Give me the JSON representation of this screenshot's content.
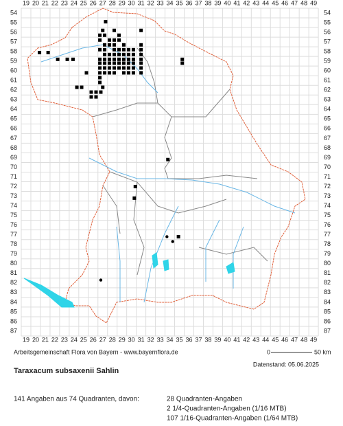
{
  "map": {
    "x_labels": [
      19,
      20,
      21,
      22,
      23,
      24,
      25,
      26,
      27,
      28,
      29,
      30,
      31,
      32,
      33,
      34,
      35,
      36,
      37,
      38,
      39,
      40,
      41,
      42,
      43,
      44,
      45,
      46,
      47,
      48,
      49
    ],
    "y_labels": [
      54,
      55,
      56,
      57,
      58,
      59,
      60,
      61,
      62,
      63,
      64,
      65,
      66,
      67,
      68,
      69,
      70,
      71,
      72,
      73,
      74,
      75,
      76,
      77,
      78,
      79,
      80,
      81,
      82,
      83,
      84,
      85,
      86,
      87
    ],
    "squares": [
      [
        27.3,
        54.9
      ],
      [
        20.4,
        58.1
      ],
      [
        21.3,
        58.1
      ],
      [
        22.3,
        58.8
      ],
      [
        23.3,
        58.8
      ],
      [
        23.9,
        58.8
      ],
      [
        27.0,
        55.8
      ],
      [
        28.2,
        55.8
      ],
      [
        31.0,
        55.8
      ],
      [
        26.7,
        56.3
      ],
      [
        27.2,
        56.3
      ],
      [
        28.7,
        56.3
      ],
      [
        26.7,
        56.8
      ],
      [
        27.7,
        56.8
      ],
      [
        28.2,
        56.8
      ],
      [
        28.7,
        56.8
      ],
      [
        27.2,
        57.3
      ],
      [
        27.7,
        57.3
      ],
      [
        28.2,
        57.3
      ],
      [
        29.2,
        57.3
      ],
      [
        31.0,
        57.3
      ],
      [
        26.7,
        57.8
      ],
      [
        27.2,
        57.8
      ],
      [
        28.2,
        57.8
      ],
      [
        28.7,
        57.8
      ],
      [
        29.2,
        57.8
      ],
      [
        29.7,
        57.8
      ],
      [
        30.2,
        57.8
      ],
      [
        31.0,
        57.8
      ],
      [
        27.2,
        58.3
      ],
      [
        27.7,
        58.3
      ],
      [
        28.2,
        58.3
      ],
      [
        28.7,
        58.3
      ],
      [
        29.2,
        58.3
      ],
      [
        29.7,
        58.3
      ],
      [
        30.2,
        58.3
      ],
      [
        31.0,
        58.3
      ],
      [
        26.7,
        58.8
      ],
      [
        27.2,
        58.8
      ],
      [
        27.7,
        58.8
      ],
      [
        28.2,
        58.8
      ],
      [
        28.7,
        58.8
      ],
      [
        29.2,
        58.8
      ],
      [
        29.7,
        58.8
      ],
      [
        30.2,
        58.8
      ],
      [
        31.0,
        58.8
      ],
      [
        35.3,
        58.8
      ],
      [
        26.7,
        59.2
      ],
      [
        27.2,
        59.2
      ],
      [
        27.7,
        59.2
      ],
      [
        28.2,
        59.2
      ],
      [
        28.7,
        59.2
      ],
      [
        29.2,
        59.2
      ],
      [
        29.7,
        59.2
      ],
      [
        30.2,
        59.2
      ],
      [
        31.0,
        59.2
      ],
      [
        35.3,
        59.2
      ],
      [
        26.7,
        59.7
      ],
      [
        27.2,
        59.7
      ],
      [
        27.7,
        59.7
      ],
      [
        28.2,
        59.7
      ],
      [
        28.7,
        59.7
      ],
      [
        29.2,
        59.7
      ],
      [
        29.7,
        59.7
      ],
      [
        30.2,
        59.7
      ],
      [
        31.0,
        59.7
      ],
      [
        25.3,
        60.2
      ],
      [
        26.7,
        60.2
      ],
      [
        27.2,
        60.2
      ],
      [
        27.7,
        60.2
      ],
      [
        28.2,
        60.2
      ],
      [
        29.2,
        60.2
      ],
      [
        29.7,
        60.2
      ],
      [
        30.2,
        60.2
      ],
      [
        31.0,
        60.2
      ],
      [
        26.7,
        60.7
      ],
      [
        26.7,
        61.2
      ],
      [
        24.3,
        61.7
      ],
      [
        24.8,
        61.7
      ],
      [
        27.0,
        61.7
      ],
      [
        25.8,
        62.2
      ],
      [
        26.3,
        62.2
      ],
      [
        26.8,
        62.2
      ],
      [
        25.8,
        62.7
      ],
      [
        26.3,
        62.7
      ],
      [
        33.8,
        69.2
      ],
      [
        30.4,
        72.0
      ],
      [
        30.3,
        73.2
      ],
      [
        34.9,
        77.2
      ]
    ],
    "dots": [
      [
        33.7,
        77.2
      ],
      [
        34.3,
        77.7
      ],
      [
        26.8,
        81.7
      ]
    ],
    "credit": "Arbeitsgemeinschaft Flora von Bayern - www.bayernflora.de",
    "scale_start": "0",
    "scale_end": "50 km",
    "date": "Datenstand: 05.06.2025",
    "title": "Taraxacum subsaxenii Sahlin",
    "summary": "141 Angaben aus 74 Quadranten, davon:",
    "counts": [
      "28 Quadranten-Angaben",
      "2 1/4-Quadranten-Angaben (1/16 MTB)",
      "107 1/16-Quadranten-Angaben (1/64 MTB)"
    ]
  }
}
